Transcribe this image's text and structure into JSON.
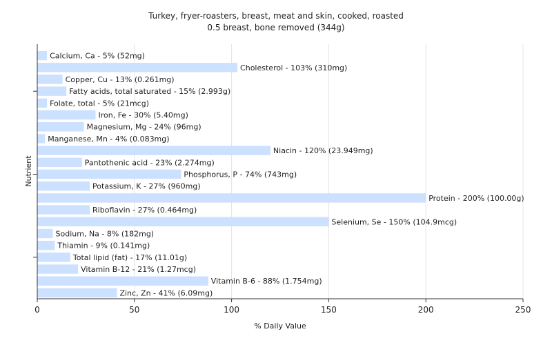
{
  "chart_data": {
    "type": "bar",
    "orientation": "horizontal",
    "title": "Turkey, fryer-roasters, breast, meat and skin, cooked, roasted",
    "subtitle": "0.5 breast, bone removed (344g)",
    "xlabel": "% Daily Value",
    "ylabel": "Nutrient",
    "xlim": [
      0,
      250
    ],
    "xticks": [
      0,
      50,
      100,
      150,
      200,
      250
    ],
    "grid": true,
    "bar_color": "#cce0ff",
    "categories": [
      "Calcium, Ca",
      "Cholesterol",
      "Copper, Cu",
      "Fatty acids, total saturated",
      "Folate, total",
      "Iron, Fe",
      "Magnesium, Mg",
      "Manganese, Mn",
      "Niacin",
      "Pantothenic acid",
      "Phosphorus, P",
      "Potassium, K",
      "Protein",
      "Riboflavin",
      "Selenium, Se",
      "Sodium, Na",
      "Thiamin",
      "Total lipid (fat)",
      "Vitamin B-12",
      "Vitamin B-6",
      "Zinc, Zn"
    ],
    "values": [
      5,
      103,
      13,
      15,
      5,
      30,
      24,
      4,
      120,
      23,
      74,
      27,
      200,
      27,
      150,
      8,
      9,
      17,
      21,
      88,
      41
    ],
    "labels": [
      "Calcium, Ca - 5% (52mg)",
      "Cholesterol - 103% (310mg)",
      "Copper, Cu - 13% (0.261mg)",
      "Fatty acids, total saturated - 15% (2.993g)",
      "Folate, total - 5% (21mcg)",
      "Iron, Fe - 30% (5.40mg)",
      "Magnesium, Mg - 24% (96mg)",
      "Manganese, Mn - 4% (0.083mg)",
      "Niacin - 120% (23.949mg)",
      "Pantothenic acid - 23% (2.274mg)",
      "Phosphorus, P - 74% (743mg)",
      "Potassium, K - 27% (960mg)",
      "Protein - 200% (100.00g)",
      "Riboflavin - 27% (0.464mg)",
      "Selenium, Se - 150% (104.9mcg)",
      "Sodium, Na - 8% (182mg)",
      "Thiamin - 9% (0.141mg)",
      "Total lipid (fat) - 17% (11.01g)",
      "Vitamin B-12 - 21% (1.27mcg)",
      "Vitamin B-6 - 88% (1.754mg)",
      "Zinc, Zn - 41% (6.09mg)"
    ]
  }
}
